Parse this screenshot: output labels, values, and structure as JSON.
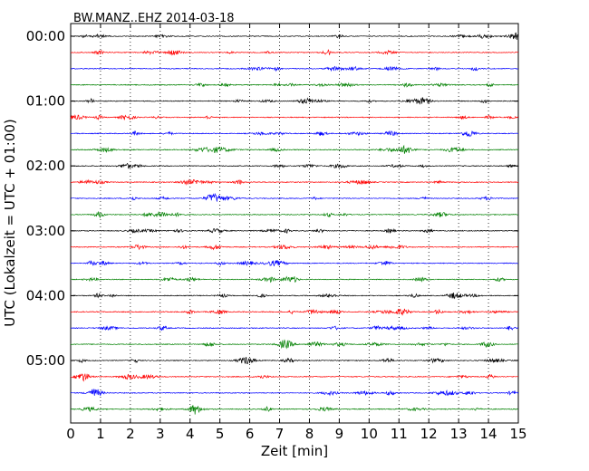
{
  "chart_data": {
    "type": "line",
    "title": "BW.MANZ..EHZ 2014-03-18",
    "xlabel": "Zeit  [min]",
    "ylabel": "UTC (Lokalzeit = UTC + 01:00)",
    "xlim": [
      0,
      15
    ],
    "x_ticks": [
      "0",
      "1",
      "2",
      "3",
      "4",
      "5",
      "6",
      "7",
      "8",
      "9",
      "10",
      "11",
      "12",
      "13",
      "14",
      "15"
    ],
    "y_ticks": [
      "00:00",
      "01:00",
      "02:00",
      "03:00",
      "04:00",
      "05:00"
    ],
    "grid_x": "dotted vertical at each minute",
    "trace_colors": [
      "#000000",
      "#ff0000",
      "#0000ff",
      "#008000"
    ],
    "trace_start_times": [
      "00:00",
      "00:15",
      "00:30",
      "00:45",
      "01:00",
      "01:15",
      "01:30",
      "01:45",
      "02:00",
      "02:15",
      "02:30",
      "02:45",
      "03:00",
      "03:15",
      "03:30",
      "03:45",
      "04:00",
      "04:15",
      "04:30",
      "04:45",
      "05:00",
      "05:15",
      "05:30",
      "05:45"
    ],
    "notable_events": [
      {
        "trace": "01:00",
        "x": 11.8
      },
      {
        "trace": "04:15",
        "x": 11.1
      },
      {
        "trace": "04:45",
        "x": 7.2
      }
    ]
  }
}
